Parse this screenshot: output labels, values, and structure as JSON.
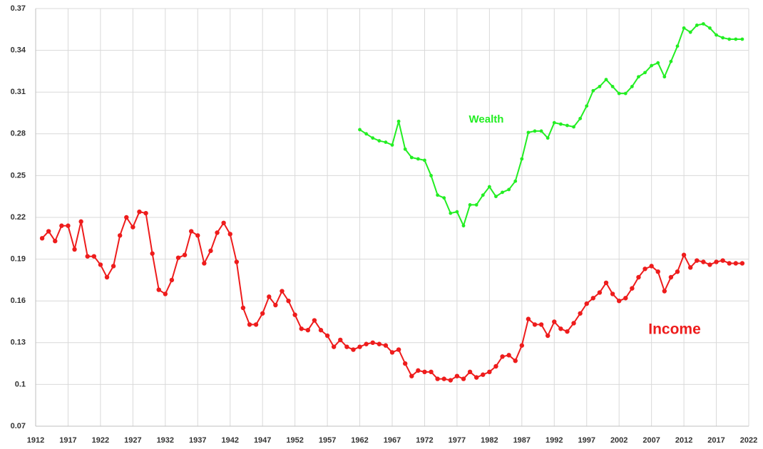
{
  "chart_data": {
    "type": "line",
    "x": [
      1913,
      1914,
      1915,
      1916,
      1917,
      1918,
      1919,
      1920,
      1921,
      1922,
      1923,
      1924,
      1925,
      1926,
      1927,
      1928,
      1929,
      1930,
      1931,
      1932,
      1933,
      1934,
      1935,
      1936,
      1937,
      1938,
      1939,
      1940,
      1941,
      1942,
      1943,
      1944,
      1945,
      1946,
      1947,
      1948,
      1949,
      1950,
      1951,
      1952,
      1953,
      1954,
      1955,
      1956,
      1957,
      1958,
      1959,
      1960,
      1961,
      1962,
      1963,
      1964,
      1965,
      1966,
      1967,
      1968,
      1969,
      1970,
      1971,
      1972,
      1973,
      1974,
      1975,
      1976,
      1977,
      1978,
      1979,
      1980,
      1981,
      1982,
      1983,
      1984,
      1985,
      1986,
      1987,
      1988,
      1989,
      1990,
      1991,
      1992,
      1993,
      1994,
      1995,
      1996,
      1997,
      1998,
      1999,
      2000,
      2001,
      2002,
      2003,
      2004,
      2005,
      2006,
      2007,
      2008,
      2009,
      2010,
      2011,
      2012,
      2013,
      2014,
      2015,
      2016,
      2017,
      2018,
      2019,
      2020,
      2021
    ],
    "series": [
      {
        "name": "Income",
        "color": "#ee1c1c",
        "values": [
          0.205,
          0.21,
          0.203,
          0.214,
          0.214,
          0.197,
          0.217,
          0.192,
          0.192,
          0.186,
          0.177,
          0.185,
          0.207,
          0.22,
          0.213,
          0.224,
          0.223,
          0.194,
          0.168,
          0.165,
          0.175,
          0.191,
          0.193,
          0.21,
          0.207,
          0.187,
          0.196,
          0.209,
          0.216,
          0.208,
          0.188,
          0.155,
          0.143,
          0.143,
          0.151,
          0.163,
          0.157,
          0.167,
          0.16,
          0.15,
          0.14,
          0.139,
          0.146,
          0.139,
          0.135,
          0.127,
          0.132,
          0.127,
          0.125,
          0.127,
          0.129,
          0.13,
          0.129,
          0.128,
          0.123,
          0.125,
          0.115,
          0.106,
          0.11,
          0.109,
          0.109,
          0.104,
          0.104,
          0.103,
          0.106,
          0.104,
          0.109,
          0.105,
          0.107,
          0.109,
          0.113,
          0.12,
          0.121,
          0.117,
          0.128,
          0.147,
          0.143,
          0.143,
          0.135,
          0.145,
          0.14,
          0.138,
          0.144,
          0.151,
          0.158,
          0.162,
          0.166,
          0.173,
          0.165,
          0.16,
          0.162,
          0.169,
          0.177,
          0.183,
          0.185,
          0.181,
          0.167,
          0.177,
          0.181,
          0.193,
          0.184,
          0.189,
          0.188,
          0.186,
          0.188,
          0.189,
          0.187,
          0.187,
          0.187
        ]
      },
      {
        "name": "Wealth",
        "color": "#22ee22",
        "values": [
          null,
          null,
          null,
          null,
          null,
          null,
          null,
          null,
          null,
          null,
          null,
          null,
          null,
          null,
          null,
          null,
          null,
          null,
          null,
          null,
          null,
          null,
          null,
          null,
          null,
          null,
          null,
          null,
          null,
          null,
          null,
          null,
          null,
          null,
          null,
          null,
          null,
          null,
          null,
          null,
          null,
          null,
          null,
          null,
          null,
          null,
          null,
          null,
          null,
          0.283,
          0.28,
          0.277,
          0.275,
          0.274,
          0.272,
          0.289,
          0.269,
          0.263,
          0.262,
          0.261,
          0.25,
          0.236,
          0.234,
          0.223,
          0.224,
          0.214,
          0.229,
          0.229,
          0.236,
          0.242,
          0.235,
          0.238,
          0.24,
          0.246,
          0.262,
          0.281,
          0.282,
          0.282,
          0.277,
          0.288,
          0.287,
          0.286,
          0.285,
          0.291,
          0.3,
          0.311,
          0.314,
          0.319,
          0.314,
          0.309,
          0.309,
          0.314,
          0.321,
          0.324,
          0.329,
          0.331,
          0.321,
          0.332,
          0.343,
          0.356,
          0.353,
          0.358,
          0.359,
          0.356,
          0.351,
          0.349,
          0.348,
          0.348,
          0.348
        ]
      }
    ],
    "xlim": [
      1912,
      2022
    ],
    "xticks": [
      1912,
      1917,
      1922,
      1927,
      1932,
      1937,
      1942,
      1947,
      1952,
      1957,
      1962,
      1967,
      1972,
      1977,
      1982,
      1987,
      1992,
      1997,
      2002,
      2007,
      2012,
      2017,
      2022
    ],
    "ylim": [
      0.07,
      0.37
    ],
    "yticks": [
      0.07,
      0.1,
      0.13,
      0.16,
      0.19,
      0.22,
      0.25,
      0.28,
      0.31,
      0.34,
      0.37
    ],
    "grid": true
  }
}
